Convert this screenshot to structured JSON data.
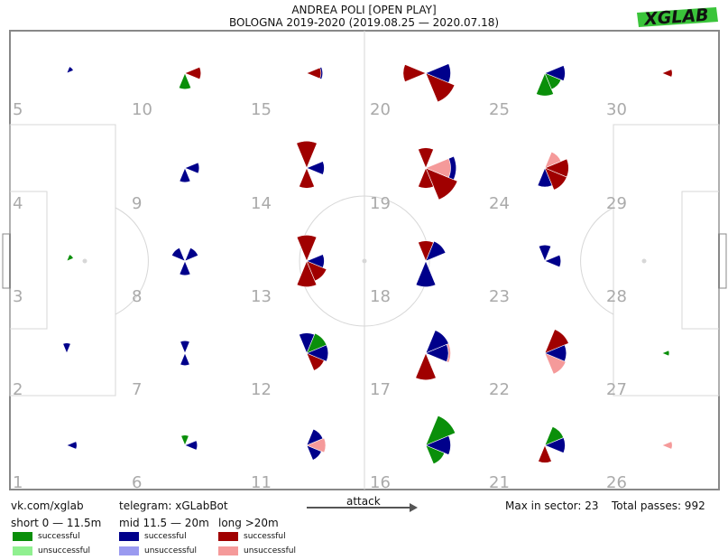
{
  "header": {
    "title": "ANDREA POLI [OPEN PLAY]",
    "subtitle": "BOLOGNA 2019-2020 (2019.08.25 — 2020.07.18)",
    "logo_text": "XGLAB"
  },
  "footer": {
    "site": "vk.com/xglab",
    "telegram": "telegram: xGLabBot",
    "attack_label": "attack",
    "max_in_sector": "Max in sector: 23",
    "total_passes": "Total passes: 992"
  },
  "legend": {
    "groups": [
      {
        "title": "short 0 — 11.5m",
        "successful_label": "successful",
        "unsuccessful_label": "unsuccessful",
        "successful_color": "#0a8f0a",
        "unsuccessful_color": "#90f090"
      },
      {
        "title": "mid 11.5 — 20m",
        "successful_label": "successful",
        "unsuccessful_label": "unsuccessful",
        "successful_color": "#00008b",
        "unsuccessful_color": "#9a9af0"
      },
      {
        "title": "long >20m",
        "successful_label": "successful",
        "unsuccessful_label": "unsuccessful",
        "successful_color": "#a00000",
        "unsuccessful_color": "#f59a9a"
      }
    ]
  },
  "chart_data": {
    "type": "pass-direction rose map",
    "max_in_sector": 23,
    "total_passes": 992,
    "zone_labels": [
      "1",
      "2",
      "3",
      "4",
      "5",
      "6",
      "7",
      "8",
      "9",
      "10",
      "11",
      "12",
      "13",
      "14",
      "15",
      "16",
      "17",
      "18",
      "19",
      "20",
      "21",
      "22",
      "23",
      "24",
      "25",
      "26",
      "27",
      "28",
      "29",
      "30"
    ],
    "zones": [
      {
        "zone": "1",
        "roses": [
          {
            "color": "#00008b",
            "angle": 0,
            "value": 2
          }
        ]
      },
      {
        "zone": "2",
        "roses": [
          {
            "color": "#00008b",
            "angle": 90,
            "value": 2
          }
        ]
      },
      {
        "zone": "3",
        "roses": [
          {
            "color": "#0a8f0a",
            "angle": 45,
            "value": 1
          }
        ]
      },
      {
        "zone": "4",
        "roses": []
      },
      {
        "zone": "5",
        "roses": [
          {
            "color": "#00008b",
            "angle": 45,
            "value": 1
          }
        ]
      },
      {
        "zone": "6",
        "roses": [
          {
            "color": "#00008b",
            "angle": 0,
            "value": 3
          },
          {
            "color": "#0a8f0a",
            "angle": 90,
            "value": 2
          }
        ]
      },
      {
        "zone": "7",
        "roses": [
          {
            "color": "#00008b",
            "angle": 90,
            "value": 3
          },
          {
            "color": "#00008b",
            "angle": 270,
            "value": 3
          }
        ]
      },
      {
        "zone": "8",
        "roses": [
          {
            "color": "#00008b",
            "angle": 45,
            "value": 4
          },
          {
            "color": "#00008b",
            "angle": 135,
            "value": 4
          },
          {
            "color": "#00008b",
            "angle": 270,
            "value": 4
          }
        ]
      },
      {
        "zone": "9",
        "roses": [
          {
            "color": "#00008b",
            "angle": 0,
            "value": 4
          },
          {
            "color": "#00008b",
            "angle": 270,
            "value": 4
          }
        ]
      },
      {
        "zone": "10",
        "roses": [
          {
            "color": "#0a8f0a",
            "angle": 270,
            "value": 5
          },
          {
            "color": "#00008b",
            "angle": 0,
            "value": 4
          },
          {
            "color": "#a00000",
            "angle": 0,
            "value": 5
          }
        ]
      },
      {
        "zone": "11",
        "roses": [
          {
            "color": "#00008b",
            "angle": 315,
            "value": 5
          },
          {
            "color": "#f59a9a",
            "angle": 0,
            "value": 7
          },
          {
            "color": "#00008b",
            "angle": 45,
            "value": 6
          }
        ]
      },
      {
        "zone": "12",
        "roses": [
          {
            "color": "#a00000",
            "angle": 315,
            "value": 7
          },
          {
            "color": "#00008b",
            "angle": 0,
            "value": 9
          },
          {
            "color": "#0a8f0a",
            "angle": 45,
            "value": 9
          },
          {
            "color": "#00008b",
            "angle": 90,
            "value": 8
          }
        ]
      },
      {
        "zone": "13",
        "roses": [
          {
            "color": "#a00000",
            "angle": 270,
            "value": 13
          },
          {
            "color": "#a00000",
            "angle": 90,
            "value": 13
          },
          {
            "color": "#00008b",
            "angle": 0,
            "value": 6
          },
          {
            "color": "#a00000",
            "angle": 315,
            "value": 9
          }
        ]
      },
      {
        "zone": "14",
        "roses": [
          {
            "color": "#a00000",
            "angle": 90,
            "value": 14
          },
          {
            "color": "#a00000",
            "angle": 270,
            "value": 8
          },
          {
            "color": "#00008b",
            "angle": 0,
            "value": 6
          }
        ]
      },
      {
        "zone": "15",
        "roses": [
          {
            "color": "#00008b",
            "angle": 0,
            "value": 5
          },
          {
            "color": "#a00000",
            "angle": 0,
            "value": 4
          }
        ]
      },
      {
        "zone": "16",
        "roses": [
          {
            "color": "#0a8f0a",
            "angle": 45,
            "value": 20
          },
          {
            "color": "#00008b",
            "angle": 0,
            "value": 12
          },
          {
            "color": "#0a8f0a",
            "angle": 315,
            "value": 8
          }
        ]
      },
      {
        "zone": "17",
        "roses": [
          {
            "color": "#a00000",
            "angle": 270,
            "value": 14
          },
          {
            "color": "#00008b",
            "angle": 45,
            "value": 12
          },
          {
            "color": "#f59a9a",
            "angle": 0,
            "value": 12
          },
          {
            "color": "#00008b",
            "angle": 0,
            "value": 10
          }
        ]
      },
      {
        "zone": "18",
        "roses": [
          {
            "color": "#00008b",
            "angle": 270,
            "value": 13
          },
          {
            "color": "#00008b",
            "angle": 45,
            "value": 9
          },
          {
            "color": "#a00000",
            "angle": 90,
            "value": 8
          }
        ]
      },
      {
        "zone": "19",
        "roses": [
          {
            "color": "#a00000",
            "angle": 315,
            "value": 23
          },
          {
            "color": "#00008b",
            "angle": 0,
            "value": 18
          },
          {
            "color": "#f59a9a",
            "angle": 0,
            "value": 12
          },
          {
            "color": "#a00000",
            "angle": 270,
            "value": 8
          },
          {
            "color": "#a00000",
            "angle": 90,
            "value": 8
          }
        ]
      },
      {
        "zone": "20",
        "roses": [
          {
            "color": "#a00000",
            "angle": 315,
            "value": 19
          },
          {
            "color": "#00008b",
            "angle": 0,
            "value": 12
          },
          {
            "color": "#a00000",
            "angle": 180,
            "value": 10
          }
        ]
      },
      {
        "zone": "21",
        "roses": [
          {
            "color": "#00008b",
            "angle": 0,
            "value": 8
          },
          {
            "color": "#0a8f0a",
            "angle": 45,
            "value": 8
          },
          {
            "color": "#a00000",
            "angle": 270,
            "value": 6
          }
        ]
      },
      {
        "zone": "22",
        "roses": [
          {
            "color": "#a00000",
            "angle": 45,
            "value": 13
          },
          {
            "color": "#f59a9a",
            "angle": 315,
            "value": 10
          },
          {
            "color": "#00008b",
            "angle": 0,
            "value": 9
          }
        ]
      },
      {
        "zone": "23",
        "roses": [
          {
            "color": "#00008b",
            "angle": 0,
            "value": 5
          },
          {
            "color": "#00008b",
            "angle": 90,
            "value": 5
          }
        ]
      },
      {
        "zone": "24",
        "roses": [
          {
            "color": "#a00000",
            "angle": 0,
            "value": 11
          },
          {
            "color": "#a00000",
            "angle": 315,
            "value": 11
          },
          {
            "color": "#00008b",
            "angle": 270,
            "value": 7
          },
          {
            "color": "#f59a9a",
            "angle": 45,
            "value": 6
          }
        ]
      },
      {
        "zone": "25",
        "roses": [
          {
            "color": "#0a8f0a",
            "angle": 270,
            "value": 10
          },
          {
            "color": "#00008b",
            "angle": 0,
            "value": 8
          },
          {
            "color": "#0a8f0a",
            "angle": 315,
            "value": 6
          }
        ]
      },
      {
        "zone": "26",
        "roses": [
          {
            "color": "#f59a9a",
            "angle": 0,
            "value": 2
          }
        ]
      },
      {
        "zone": "27",
        "roses": [
          {
            "color": "#0a8f0a",
            "angle": 0,
            "value": 1
          }
        ]
      },
      {
        "zone": "28",
        "roses": []
      },
      {
        "zone": "29",
        "roses": []
      },
      {
        "zone": "30",
        "roses": [
          {
            "color": "#a00000",
            "angle": 0,
            "value": 2
          }
        ]
      }
    ]
  }
}
